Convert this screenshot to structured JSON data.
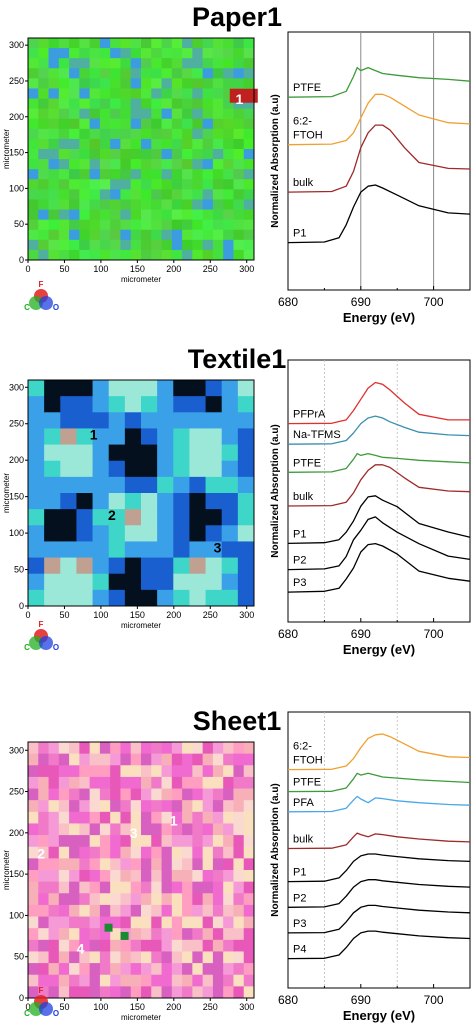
{
  "panels": [
    {
      "title": "Paper1",
      "map": {
        "xlabel": "micrometer",
        "ylabel": "micrometer",
        "xticks": [
          0,
          50,
          100,
          150,
          200,
          250,
          300
        ],
        "yticks": [
          0,
          50,
          100,
          150,
          200,
          250,
          300
        ],
        "range": [
          0,
          310
        ],
        "base_color": "#4ee53a",
        "spot_labels": [
          {
            "label": "1",
            "x": 290,
            "y": 225
          }
        ]
      },
      "spectra": {
        "type": "line",
        "xlabel": "Energy (eV)",
        "ylabel": "Normalized Absorption (a.u)",
        "xlim": [
          680,
          705
        ],
        "xticks": [
          680,
          690,
          700
        ],
        "series": [
          {
            "name": "PTFE",
            "color": "#3d9b3a"
          },
          {
            "name": "6:2-\nFTOH",
            "color": "#f0a030"
          },
          {
            "name": "bulk",
            "color": "#9e2a2a"
          },
          {
            "name": "P1",
            "color": "#000000"
          }
        ]
      }
    },
    {
      "title": "Textile1",
      "map": {
        "xlabel": "micrometer",
        "ylabel": "micrometer",
        "xticks": [
          0,
          50,
          100,
          150,
          200,
          250,
          300
        ],
        "yticks": [
          0,
          50,
          100,
          150,
          200,
          250,
          300
        ],
        "range": [
          0,
          310
        ],
        "base_color": "#1f6fd6",
        "spot_labels": [
          {
            "label": "1",
            "x": 90,
            "y": 235
          },
          {
            "label": "2",
            "x": 115,
            "y": 125
          },
          {
            "label": "3",
            "x": 260,
            "y": 80
          }
        ]
      },
      "spectra": {
        "type": "line",
        "xlabel": "Energy (eV)",
        "ylabel": "Normalized Absorption (a.u)",
        "xlim": [
          680,
          705
        ],
        "xticks": [
          680,
          690,
          700
        ],
        "series": [
          {
            "name": "PFPrA",
            "color": "#e03030"
          },
          {
            "name": "Na-TFMS",
            "color": "#3a8fb0"
          },
          {
            "name": "PTFE",
            "color": "#3d9b3a"
          },
          {
            "name": "bulk",
            "color": "#9e2a2a"
          },
          {
            "name": "P1",
            "color": "#000000"
          },
          {
            "name": "P2",
            "color": "#000000"
          },
          {
            "name": "P3",
            "color": "#000000"
          }
        ]
      }
    },
    {
      "title": "Sheet1",
      "map": {
        "xlabel": "micrometer",
        "ylabel": "micrometer",
        "xticks": [
          0,
          50,
          100,
          150,
          200,
          250,
          300
        ],
        "yticks": [
          0,
          50,
          100,
          150,
          200,
          250,
          300
        ],
        "range": [
          0,
          310
        ],
        "base_color": "#f07ad0",
        "spot_labels": [
          {
            "label": "1",
            "x": 200,
            "y": 215
          },
          {
            "label": "2",
            "x": 18,
            "y": 175
          },
          {
            "label": "3",
            "x": 145,
            "y": 200
          },
          {
            "label": "4",
            "x": 72,
            "y": 60
          }
        ]
      },
      "spectra": {
        "type": "line",
        "xlabel": "Energy (eV)",
        "ylabel": "Normalized Absorption (a.u)",
        "xlim": [
          680,
          705
        ],
        "xticks": [
          680,
          690,
          700
        ],
        "series": [
          {
            "name": "6:2-\nFTOH",
            "color": "#f0a030"
          },
          {
            "name": "PTFE",
            "color": "#3d9b3a"
          },
          {
            "name": "PFA",
            "color": "#4aa8e8"
          },
          {
            "name": "bulk",
            "color": "#9e2a2a"
          },
          {
            "name": "P1",
            "color": "#000000"
          },
          {
            "name": "P2",
            "color": "#000000"
          },
          {
            "name": "P3",
            "color": "#000000"
          },
          {
            "name": "P4",
            "color": "#000000"
          }
        ]
      }
    }
  ],
  "element_legend": {
    "top": "F",
    "left": "C",
    "right": "O",
    "colors": {
      "F": "#e02020",
      "C": "#20b020",
      "O": "#2040e0"
    }
  },
  "chart_data": [
    {
      "type": "line",
      "title": "Paper1",
      "xlabel": "Energy (eV)",
      "ylabel": "Normalized Absorption (a.u)",
      "xlim": [
        680,
        705
      ],
      "reference_lines": [
        690,
        700
      ],
      "series": [
        {
          "name": "PTFE",
          "x": [
            680,
            686,
            688,
            689,
            689.5,
            690,
            691,
            692,
            693,
            695,
            698,
            702,
            705
          ],
          "values": [
            3.45,
            3.46,
            3.55,
            3.8,
            3.95,
            3.9,
            3.95,
            3.9,
            3.85,
            3.82,
            3.78,
            3.75,
            3.72
          ]
        },
        {
          "name": "6:2-\nFTOH",
          "x": [
            680,
            686,
            688,
            689,
            690,
            691,
            692,
            693,
            694,
            696,
            698,
            702,
            705
          ],
          "values": [
            2.65,
            2.66,
            2.72,
            2.85,
            3.1,
            3.35,
            3.5,
            3.5,
            3.45,
            3.3,
            3.15,
            3.02,
            3.0
          ]
        },
        {
          "name": "bulk",
          "x": [
            680,
            686,
            688,
            689,
            690,
            691,
            692,
            693,
            694,
            696,
            698,
            702,
            705
          ],
          "values": [
            1.85,
            1.86,
            1.95,
            2.2,
            2.6,
            2.85,
            2.98,
            2.98,
            2.9,
            2.6,
            2.35,
            2.25,
            2.24
          ]
        },
        {
          "name": "P1",
          "x": [
            680,
            685,
            687,
            688,
            689,
            690,
            691,
            692,
            693,
            695,
            698,
            702,
            705
          ],
          "values": [
            1.0,
            1.01,
            1.08,
            1.3,
            1.6,
            1.85,
            1.95,
            1.97,
            1.92,
            1.8,
            1.62,
            1.5,
            1.48
          ]
        }
      ]
    },
    {
      "type": "line",
      "title": "Textile1",
      "xlabel": "Energy (eV)",
      "ylabel": "Normalized Absorption (a.u)",
      "xlim": [
        680,
        705
      ],
      "reference_lines": [
        685,
        695
      ],
      "series": [
        {
          "name": "PFPrA",
          "x": [
            680,
            686,
            688,
            689,
            690,
            691,
            692,
            693,
            694,
            696,
            698,
            702,
            705
          ],
          "values": [
            6.95,
            6.96,
            7.05,
            7.3,
            7.6,
            7.9,
            8.05,
            8.0,
            7.85,
            7.5,
            7.2,
            7.05,
            7.05
          ]
        },
        {
          "name": "Na-TFMS",
          "x": [
            680,
            686,
            688,
            689,
            690,
            691,
            692,
            693,
            694,
            696,
            698,
            702,
            705
          ],
          "values": [
            6.4,
            6.41,
            6.5,
            6.7,
            6.95,
            7.1,
            7.15,
            7.1,
            7.0,
            6.85,
            6.72,
            6.65,
            6.63
          ]
        },
        {
          "name": "PTFE",
          "x": [
            680,
            686,
            688,
            689,
            689.5,
            690,
            691,
            692,
            693,
            695,
            698,
            702,
            705
          ],
          "values": [
            5.65,
            5.66,
            5.75,
            6.0,
            6.15,
            6.1,
            6.15,
            6.1,
            6.05,
            6.02,
            5.97,
            5.93,
            5.9
          ]
        },
        {
          "name": "bulk",
          "x": [
            680,
            686,
            688,
            689,
            690,
            691,
            692,
            693,
            694,
            696,
            698,
            702,
            705
          ],
          "values": [
            4.75,
            4.76,
            4.85,
            5.1,
            5.45,
            5.7,
            5.85,
            5.85,
            5.78,
            5.5,
            5.25,
            5.15,
            5.13
          ]
        },
        {
          "name": "P1",
          "x": [
            680,
            685,
            687,
            688,
            689,
            690,
            691,
            692,
            693,
            695,
            698,
            702,
            705
          ],
          "values": [
            3.75,
            3.77,
            3.85,
            4.05,
            4.4,
            4.75,
            4.95,
            5.0,
            4.95,
            4.7,
            4.3,
            4.05,
            3.95
          ]
        },
        {
          "name": "P2",
          "x": [
            680,
            685,
            687,
            688,
            689,
            690,
            691,
            692,
            693,
            695,
            698,
            702,
            705
          ],
          "values": [
            3.05,
            3.07,
            3.15,
            3.4,
            3.8,
            4.15,
            4.35,
            4.4,
            4.35,
            4.1,
            3.7,
            3.45,
            3.35
          ]
        },
        {
          "name": "P3",
          "x": [
            680,
            685,
            687,
            688,
            689,
            690,
            691,
            692,
            693,
            695,
            698,
            702,
            705
          ],
          "values": [
            2.45,
            2.47,
            2.55,
            2.8,
            3.15,
            3.5,
            3.7,
            3.75,
            3.7,
            3.45,
            3.05,
            2.82,
            2.72
          ]
        }
      ]
    },
    {
      "type": "line",
      "title": "Sheet1",
      "xlabel": "Energy (eV)",
      "ylabel": "Normalized Absorption (a.u)",
      "xlim": [
        680,
        705
      ],
      "reference_lines": [
        685,
        695
      ],
      "series": [
        {
          "name": "6:2-\nFTOH",
          "x": [
            680,
            686,
            688,
            689,
            690,
            691,
            692,
            693,
            694,
            696,
            698,
            702,
            705
          ],
          "values": [
            7.45,
            7.46,
            7.55,
            7.75,
            8.05,
            8.3,
            8.4,
            8.42,
            8.35,
            8.15,
            7.95,
            7.8,
            7.78
          ]
        },
        {
          "name": "PTFE",
          "x": [
            680,
            686,
            688,
            689,
            689.5,
            690,
            691,
            692,
            693,
            695,
            698,
            702,
            705
          ],
          "values": [
            6.85,
            6.86,
            6.95,
            7.2,
            7.35,
            7.3,
            7.35,
            7.3,
            7.25,
            7.22,
            7.17,
            7.13,
            7.1
          ]
        },
        {
          "name": "PFA",
          "x": [
            680,
            686,
            688,
            689,
            689.5,
            690,
            691,
            692,
            693,
            695,
            698,
            702,
            705
          ],
          "values": [
            6.3,
            6.31,
            6.4,
            6.62,
            6.72,
            6.65,
            6.55,
            6.68,
            6.66,
            6.6,
            6.55,
            6.5,
            6.48
          ]
        },
        {
          "name": "bulk",
          "x": [
            680,
            686,
            688,
            689,
            689.5,
            690,
            691,
            692,
            693,
            695,
            698,
            702,
            705
          ],
          "values": [
            5.3,
            5.31,
            5.4,
            5.62,
            5.72,
            5.68,
            5.62,
            5.7,
            5.68,
            5.62,
            5.56,
            5.5,
            5.48
          ]
        },
        {
          "name": "P1",
          "x": [
            680,
            685,
            687,
            688,
            689,
            690,
            691,
            692,
            693,
            695,
            698,
            702,
            705
          ],
          "values": [
            4.4,
            4.41,
            4.5,
            4.7,
            4.95,
            5.1,
            5.15,
            5.15,
            5.12,
            5.08,
            5.02,
            4.97,
            4.95
          ]
        },
        {
          "name": "P2",
          "x": [
            680,
            685,
            687,
            688,
            689,
            690,
            691,
            692,
            693,
            695,
            698,
            702,
            705
          ],
          "values": [
            3.7,
            3.71,
            3.8,
            4.0,
            4.25,
            4.4,
            4.45,
            4.45,
            4.42,
            4.38,
            4.32,
            4.27,
            4.25
          ]
        },
        {
          "name": "P3",
          "x": [
            680,
            685,
            687,
            688,
            689,
            690,
            691,
            692,
            693,
            695,
            698,
            702,
            705
          ],
          "values": [
            3.0,
            3.01,
            3.1,
            3.3,
            3.55,
            3.7,
            3.75,
            3.75,
            3.72,
            3.68,
            3.62,
            3.57,
            3.55
          ]
        },
        {
          "name": "P4",
          "x": [
            680,
            685,
            687,
            688,
            689,
            690,
            691,
            692,
            693,
            695,
            698,
            702,
            705
          ],
          "values": [
            2.3,
            2.31,
            2.4,
            2.6,
            2.85,
            3.0,
            3.05,
            3.05,
            3.02,
            2.98,
            2.92,
            2.87,
            2.85
          ]
        }
      ]
    }
  ]
}
